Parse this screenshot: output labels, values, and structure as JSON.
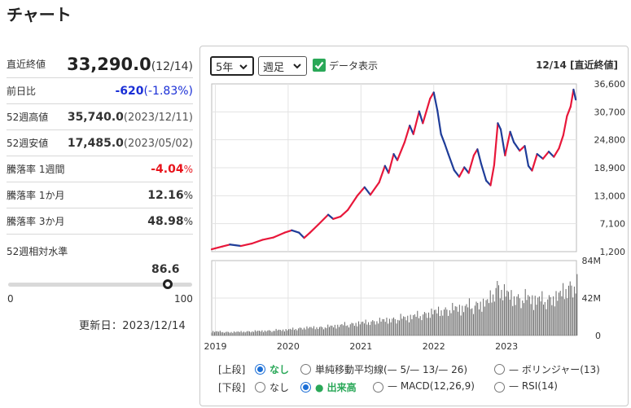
{
  "page": {
    "title": "チャート"
  },
  "stats": {
    "close": {
      "label": "直近終値",
      "value": "33,290.0",
      "date": "(12/14)"
    },
    "change": {
      "label": "前日比",
      "value": "-620",
      "pct": "(-1.83%)"
    },
    "high52": {
      "label": "52週高値",
      "value": "35,740.0",
      "date": "(2023/12/11)"
    },
    "low52": {
      "label": "52週安値",
      "value": "17,485.0",
      "date": "(2023/05/02)"
    },
    "w1": {
      "label": "騰落率 1週間",
      "value": "-4.04",
      "unit": "%"
    },
    "m1": {
      "label": "騰落率 1か月",
      "value": "12.16",
      "unit": "%"
    },
    "m3": {
      "label": "騰落率 3か月",
      "value": "48.98",
      "unit": "%"
    }
  },
  "level": {
    "label": "52週相対水準",
    "value": "86.6",
    "fraction": 0.866,
    "min": "0",
    "max": "100"
  },
  "updated": "更新日：2023/12/14",
  "controls": {
    "period": "5年",
    "interval": "週足",
    "data_display": "データ表示",
    "date_header": "12/14 [直近終値]"
  },
  "options": {
    "upper": {
      "label": "[上段]",
      "items": [
        "なし",
        "単純移動平均線(— 5/— 13/— 26)",
        "— ボリンジャー(13)"
      ],
      "selected": 0
    },
    "lower": {
      "label": "[下段]",
      "items": [
        "なし",
        "● 出来高",
        "— MACD(12,26,9)",
        "— RSI(14)"
      ],
      "selected": 1
    }
  },
  "colors": {
    "up": "#e8173a",
    "down": "#1f3d99",
    "volume": "#666666",
    "accent_green": "#2aa858",
    "down_text": "#1a2fd6",
    "up_text": "#e8141c"
  },
  "chart_data": {
    "type": "line",
    "price_axis": {
      "ticks": [
        1200,
        7100,
        13000,
        18900,
        24800,
        30700,
        36600
      ],
      "labels": [
        "1,200",
        "7,100",
        "13,000",
        "18,900",
        "24,800",
        "30,700",
        "36,600"
      ]
    },
    "volume_axis": {
      "ticks": [
        0,
        42,
        84
      ],
      "labels": [
        "0",
        "42M",
        "84M"
      ]
    },
    "x_labels": [
      "2019",
      "2020",
      "2021",
      "2022",
      "2023"
    ],
    "x_label_dates": [
      2019.0,
      2020.0,
      2021.0,
      2022.0,
      2023.0
    ],
    "x_range": [
      2018.95,
      2023.96
    ],
    "grid": true,
    "price": [
      [
        2018.95,
        1700
      ],
      [
        2019.1,
        2300
      ],
      [
        2019.2,
        2700
      ],
      [
        2019.35,
        2400
      ],
      [
        2019.5,
        2900
      ],
      [
        2019.65,
        3700
      ],
      [
        2019.8,
        4200
      ],
      [
        2019.95,
        5200
      ],
      [
        2020.05,
        5700
      ],
      [
        2020.15,
        5200
      ],
      [
        2020.22,
        4100
      ],
      [
        2020.3,
        5200
      ],
      [
        2020.42,
        7000
      ],
      [
        2020.55,
        9000
      ],
      [
        2020.62,
        8100
      ],
      [
        2020.72,
        8600
      ],
      [
        2020.82,
        10000
      ],
      [
        2020.95,
        13000
      ],
      [
        2021.05,
        14800
      ],
      [
        2021.13,
        13200
      ],
      [
        2021.25,
        15800
      ],
      [
        2021.33,
        19300
      ],
      [
        2021.38,
        17800
      ],
      [
        2021.45,
        21800
      ],
      [
        2021.5,
        20500
      ],
      [
        2021.6,
        24300
      ],
      [
        2021.67,
        27800
      ],
      [
        2021.72,
        26000
      ],
      [
        2021.8,
        30800
      ],
      [
        2021.85,
        28300
      ],
      [
        2021.95,
        33500
      ],
      [
        2022.0,
        34800
      ],
      [
        2022.05,
        31000
      ],
      [
        2022.1,
        26000
      ],
      [
        2022.15,
        24000
      ],
      [
        2022.2,
        21800
      ],
      [
        2022.28,
        18400
      ],
      [
        2022.35,
        17000
      ],
      [
        2022.42,
        19000
      ],
      [
        2022.48,
        17800
      ],
      [
        2022.55,
        21500
      ],
      [
        2022.6,
        22800
      ],
      [
        2022.65,
        19800
      ],
      [
        2022.72,
        16200
      ],
      [
        2022.78,
        15200
      ],
      [
        2022.83,
        19500
      ],
      [
        2022.88,
        28300
      ],
      [
        2022.92,
        27000
      ],
      [
        2022.98,
        21500
      ],
      [
        2023.05,
        26500
      ],
      [
        2023.1,
        24300
      ],
      [
        2023.18,
        22500
      ],
      [
        2023.25,
        23500
      ],
      [
        2023.3,
        19300
      ],
      [
        2023.35,
        18300
      ],
      [
        2023.42,
        21800
      ],
      [
        2023.5,
        20800
      ],
      [
        2023.58,
        22300
      ],
      [
        2023.65,
        21200
      ],
      [
        2023.72,
        23000
      ],
      [
        2023.78,
        25800
      ],
      [
        2023.83,
        29800
      ],
      [
        2023.88,
        31800
      ],
      [
        2023.92,
        35400
      ],
      [
        2023.95,
        33290
      ]
    ],
    "volume": [
      [
        2018.95,
        5
      ],
      [
        2019.2,
        4
      ],
      [
        2019.5,
        5
      ],
      [
        2019.8,
        6
      ],
      [
        2020.0,
        7
      ],
      [
        2020.2,
        9
      ],
      [
        2020.5,
        10
      ],
      [
        2020.8,
        13
      ],
      [
        2021.0,
        15
      ],
      [
        2021.2,
        17
      ],
      [
        2021.4,
        19
      ],
      [
        2021.6,
        21
      ],
      [
        2021.8,
        24
      ],
      [
        2022.0,
        28
      ],
      [
        2022.2,
        31
      ],
      [
        2022.4,
        33
      ],
      [
        2022.6,
        37
      ],
      [
        2022.75,
        40
      ],
      [
        2022.88,
        60
      ],
      [
        2022.95,
        52
      ],
      [
        2023.1,
        45
      ],
      [
        2023.3,
        44
      ],
      [
        2023.5,
        42
      ],
      [
        2023.7,
        46
      ],
      [
        2023.85,
        58
      ],
      [
        2023.95,
        60
      ]
    ]
  }
}
